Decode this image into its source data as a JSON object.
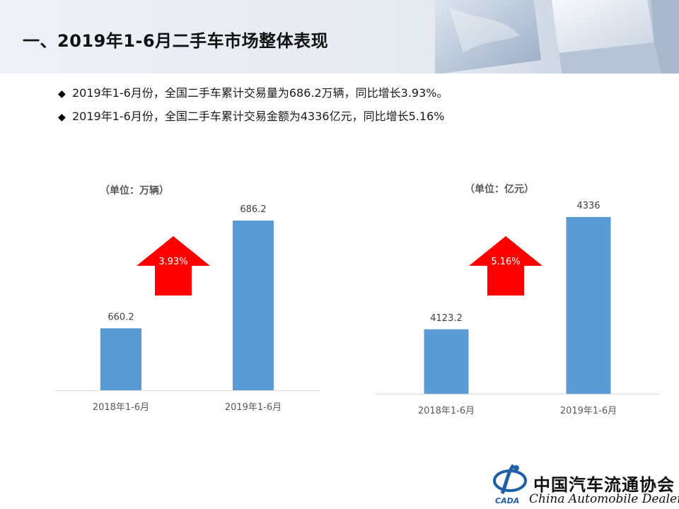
{
  "page_title": "一、2019年1-6月二手车市场整体表现",
  "bullets": [
    "2019年1-6月份，全国二手车累计交易量为686.2万辆，同比增长3.93%。",
    "2019年1-6月份，全国二手车累计交易金额为4336亿元，同比增长5.16%"
  ],
  "bullet_icon": "diamond-bullet-icon",
  "chart_data": [
    {
      "type": "bar",
      "unit_label": "（单位：万辆）",
      "categories": [
        "2018年1-6月",
        "2019年1-6月"
      ],
      "values": [
        660.2,
        686.2
      ],
      "value_labels": [
        "660.2",
        "686.2"
      ],
      "growth_label": "3.93%",
      "bar_color": "#5b9bd5",
      "arrow_color": "#ff0000",
      "grid": false
    },
    {
      "type": "bar",
      "unit_label": "（单位：亿元）",
      "categories": [
        "2018年1-6月",
        "2019年1-6月"
      ],
      "values": [
        4123.2,
        4336
      ],
      "value_labels": [
        "4123.2",
        "4336"
      ],
      "growth_label": "5.16%",
      "bar_color": "#5b9bd5",
      "arrow_color": "#ff0000",
      "grid": false
    }
  ],
  "footer": {
    "org_cn": "中国汽车流通协会",
    "org_en": "China Automobile Dealers",
    "logo_text": "CADA"
  }
}
